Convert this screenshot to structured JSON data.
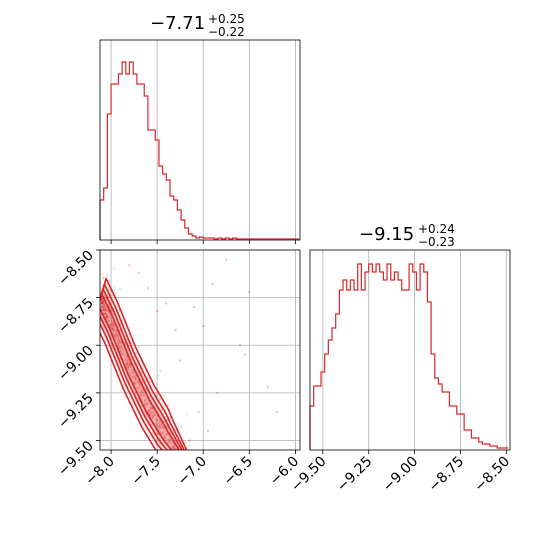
{
  "chart_data": [
    {
      "type": "histogram",
      "panel": "x-marginal",
      "title": {
        "median": "−7.71",
        "plus": "+0.25",
        "minus": "−0.22"
      },
      "xlim": [
        -8.12,
        -5.95
      ],
      "ylim": [
        0,
        1.0
      ],
      "grid": true,
      "color": "#d62728",
      "bin_edges": [
        -8.12,
        -8.08,
        -8.04,
        -8.0,
        -7.96,
        -7.92,
        -7.88,
        -7.84,
        -7.8,
        -7.76,
        -7.72,
        -7.68,
        -7.64,
        -7.6,
        -7.56,
        -7.52,
        -7.48,
        -7.44,
        -7.4,
        -7.36,
        -7.32,
        -7.28,
        -7.24,
        -7.2,
        -7.16,
        -7.12,
        -7.08,
        -7.04,
        -7.0,
        -6.96,
        -6.92,
        -6.88,
        -6.84,
        -6.8,
        -6.76,
        -6.72,
        -6.68,
        -6.64,
        -6.6,
        -6.56,
        -6.52,
        -6.48,
        -6.44,
        -6.4,
        -6.36,
        -6.32,
        -6.28,
        -6.24,
        -6.2,
        -6.16,
        -6.12,
        -6.08,
        -6.04,
        -6.0,
        -5.96
      ],
      "values": [
        0.2,
        0.26,
        0.63,
        0.78,
        0.78,
        0.83,
        0.89,
        0.83,
        0.89,
        0.83,
        0.78,
        0.78,
        0.72,
        0.55,
        0.55,
        0.5,
        0.37,
        0.33,
        0.3,
        0.22,
        0.2,
        0.15,
        0.1,
        0.06,
        0.03,
        0.02,
        0.01,
        0.015,
        0.01,
        0.01,
        0.01,
        0.005,
        0.01,
        0.005,
        0.01,
        0.005,
        0.01,
        0.005,
        0.005,
        0.005,
        0.005,
        0.005,
        0.005,
        0.005,
        0.005,
        0.005,
        0.005,
        0.005,
        0.005,
        0.005,
        0.005,
        0.005,
        0.005,
        0.005
      ],
      "xticks": [
        "−8.0",
        "−7.5",
        "−7.0",
        "−6.5",
        "−6.0"
      ]
    },
    {
      "type": "scatter",
      "panel": "joint-density",
      "xlim": [
        -8.12,
        -5.95
      ],
      "ylim": [
        -9.55,
        -8.5
      ],
      "grid": true,
      "color": "#d62728",
      "xticks": [
        "−8.0",
        "−7.5",
        "−7.0",
        "−6.5",
        "−6.0"
      ],
      "yticks": [
        "−8.50",
        "−8.75",
        "−9.00",
        "−9.25",
        "−9.50"
      ],
      "ridge": {
        "x": [
          -8.1,
          -8.0,
          -7.9,
          -7.8,
          -7.7,
          -7.6,
          -7.5,
          -7.4,
          -7.3
        ],
        "y": [
          -8.78,
          -8.88,
          -9.0,
          -9.12,
          -9.22,
          -9.32,
          -9.4,
          -9.48,
          -9.55
        ]
      },
      "contour_levels": 4,
      "outliers": [
        {
          "x": -7.0,
          "y": -8.9
        },
        {
          "x": -6.6,
          "y": -9.0
        },
        {
          "x": -6.5,
          "y": -8.72
        },
        {
          "x": -6.9,
          "y": -8.68
        },
        {
          "x": -6.55,
          "y": -9.05
        },
        {
          "x": -6.3,
          "y": -9.22
        },
        {
          "x": -6.2,
          "y": -9.35
        },
        {
          "x": -7.1,
          "y": -8.8
        },
        {
          "x": -7.3,
          "y": -8.92
        },
        {
          "x": -7.25,
          "y": -9.08
        },
        {
          "x": -6.85,
          "y": -9.25
        },
        {
          "x": -7.7,
          "y": -8.62
        },
        {
          "x": -7.6,
          "y": -8.7
        },
        {
          "x": -7.4,
          "y": -8.78
        },
        {
          "x": -6.95,
          "y": -9.45
        },
        {
          "x": -7.15,
          "y": -9.5
        },
        {
          "x": -7.05,
          "y": -9.35
        },
        {
          "x": -6.75,
          "y": -8.55
        },
        {
          "x": -7.8,
          "y": -8.58
        },
        {
          "x": -7.5,
          "y": -8.82
        }
      ]
    },
    {
      "type": "histogram",
      "panel": "y-marginal",
      "title": {
        "median": "−9.15",
        "plus": "+0.24",
        "minus": "−0.23"
      },
      "xlim": [
        -9.57,
        -8.48
      ],
      "ylim": [
        0,
        1.0
      ],
      "grid": true,
      "color": "#d62728",
      "bin_edges": [
        -9.57,
        -9.55,
        -9.53,
        -9.51,
        -9.49,
        -9.47,
        -9.45,
        -9.43,
        -9.41,
        -9.39,
        -9.37,
        -9.35,
        -9.33,
        -9.31,
        -9.29,
        -9.27,
        -9.25,
        -9.23,
        -9.21,
        -9.19,
        -9.17,
        -9.15,
        -9.13,
        -9.11,
        -9.09,
        -9.07,
        -9.03,
        -9.01,
        -8.99,
        -8.97,
        -8.95,
        -8.93,
        -8.91,
        -8.89,
        -8.87,
        -8.85,
        -8.83,
        -8.81,
        -8.79,
        -8.77,
        -8.75,
        -8.73,
        -8.71,
        -8.69,
        -8.67,
        -8.65,
        -8.63,
        -8.61,
        -8.59,
        -8.57,
        -8.55,
        -8.53,
        -8.51,
        -8.49
      ],
      "values": [
        0.22,
        0.32,
        0.32,
        0.39,
        0.48,
        0.55,
        0.61,
        0.68,
        0.8,
        0.85,
        0.8,
        0.85,
        0.8,
        0.93,
        0.8,
        0.89,
        0.93,
        0.89,
        0.93,
        0.89,
        0.85,
        0.93,
        0.85,
        0.89,
        0.85,
        0.8,
        0.93,
        0.89,
        0.8,
        0.93,
        0.89,
        0.74,
        0.48,
        0.36,
        0.33,
        0.29,
        0.29,
        0.22,
        0.22,
        0.18,
        0.18,
        0.1,
        0.1,
        0.06,
        0.06,
        0.04,
        0.03,
        0.03,
        0.02,
        0.02,
        0.01,
        0.01,
        0.01
      ],
      "xticks": [
        "−9.50",
        "−9.25",
        "−9.00",
        "−8.75",
        "−8.50"
      ]
    }
  ]
}
